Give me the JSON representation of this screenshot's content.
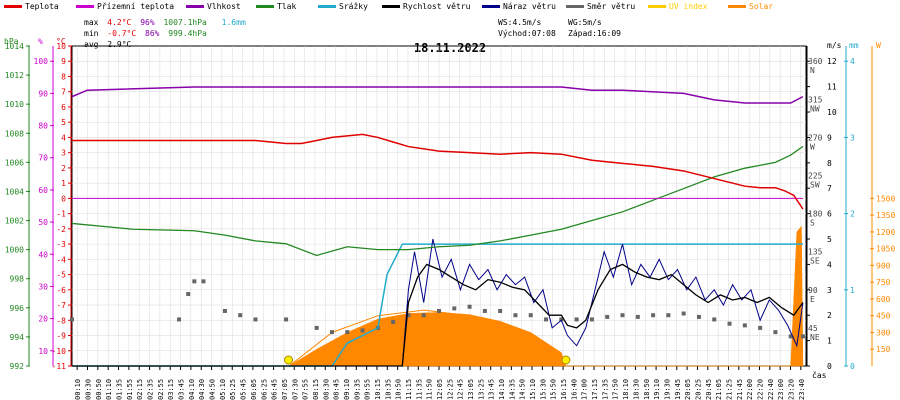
{
  "legend": [
    {
      "label": "Teplota",
      "color": "#e00000"
    },
    {
      "label": "Přízemní teplota",
      "color": "#cc00cc"
    },
    {
      "label": "Vlhkost",
      "color": "#8800aa"
    },
    {
      "label": "Tlak",
      "color": "#228822"
    },
    {
      "label": "Srážky",
      "color": "#22aacc"
    },
    {
      "label": "Rychlost větru",
      "color": "#000000"
    },
    {
      "label": "Náraz větru",
      "color": "#000088"
    },
    {
      "label": "Směr větru",
      "color": "#666666"
    },
    {
      "label": "UV index",
      "color": "#ffcc00"
    },
    {
      "label": "Solar",
      "color": "#ff8800"
    }
  ],
  "stats": {
    "max_label": "max",
    "max_temp": "4.2°C",
    "max_hum": "96%",
    "max_press": "1007.1hPa",
    "max_rain": "1.6mm",
    "min_label": "min",
    "min_temp": "-0.7°C",
    "min_hum": "86%",
    "min_press": "999.4hPa",
    "avg_label": "avg",
    "avg_temp": "2.9°C",
    "ws": "WS:4.5m/s",
    "wg": "WG:5m/s",
    "sunrise": "Východ:07:08",
    "sunset": "Západ:16:09"
  },
  "axes": {
    "hpa": "hPa",
    "pct": "%",
    "degc": "°C",
    "ms": "m/s",
    "mm": "mm",
    "w": "W",
    "cas": "čas"
  },
  "chart_data": {
    "type": "line",
    "title": "18.11.2022",
    "x_ticks": [
      "00:10",
      "00:30",
      "00:50",
      "01:10",
      "01:35",
      "01:55",
      "02:15",
      "02:35",
      "02:55",
      "03:15",
      "03:45",
      "04:10",
      "04:30",
      "04:50",
      "05:10",
      "05:25",
      "05:45",
      "06:05",
      "06:25",
      "06:45",
      "07:05",
      "07:30",
      "07:55",
      "08:15",
      "08:30",
      "08:45",
      "09:10",
      "09:35",
      "09:55",
      "10:15",
      "10:35",
      "10:50",
      "11:15",
      "11:35",
      "11:50",
      "12:05",
      "12:25",
      "12:45",
      "13:05",
      "13:25",
      "13:45",
      "14:10",
      "14:35",
      "14:50",
      "15:10",
      "15:30",
      "15:50",
      "16:15",
      "16:40",
      "17:00",
      "17:15",
      "17:35",
      "17:50",
      "18:10",
      "18:30",
      "18:50",
      "19:10",
      "19:30",
      "19:45",
      "20:05",
      "20:25",
      "20:45",
      "21:05",
      "21:25",
      "21:45",
      "22:00",
      "22:20",
      "22:40",
      "23:00",
      "23:20",
      "23:40"
    ],
    "y_temp_ticks": [
      "10",
      "9",
      "8",
      "7",
      "6",
      "5",
      "4",
      "3",
      "2",
      "1",
      "0",
      "-1",
      "-2",
      "-3",
      "-4",
      "-5",
      "-6",
      "-7",
      "-8",
      "-9",
      "-10",
      "-11"
    ],
    "y_hum_ticks": [
      "100",
      "90",
      "80",
      "70",
      "60",
      "50",
      "40",
      "30",
      "20",
      "10"
    ],
    "y_hpa_ticks": [
      "1014",
      "1012",
      "1010",
      "1008",
      "1006",
      "1004",
      "1002",
      "1000",
      "998",
      "996",
      "994",
      "992"
    ],
    "y_ms_ticks": [
      "12",
      "11",
      "10",
      "9",
      "8",
      "7",
      "6",
      "5",
      "4",
      "3",
      "2",
      "1",
      "0"
    ],
    "y_mm_ticks": [
      "4",
      "3",
      "2",
      "1",
      "0"
    ],
    "y_w_ticks": [
      "1500",
      "1350",
      "1200",
      "1050",
      "900",
      "750",
      "600",
      "450",
      "300",
      "150"
    ],
    "y_dir_ticks": [
      "360",
      "315",
      "270",
      "225",
      "180",
      "135",
      "90",
      "45"
    ],
    "y_dir_letters": [
      "N",
      "NW",
      "W",
      "SW",
      "S",
      "SE",
      "E",
      "NE"
    ],
    "ylim_temp": [
      -11,
      10
    ],
    "series": {
      "temperature": {
        "x": [
          0,
          1,
          2,
          3,
          4,
          5,
          6,
          7,
          7.5,
          8,
          8.5,
          9,
          9.5,
          10,
          10.5,
          11,
          12,
          13,
          14,
          15,
          16,
          17,
          18,
          19,
          20,
          21,
          22,
          22.5,
          23,
          23.3,
          23.6,
          23.9
        ],
        "y": [
          3.8,
          3.8,
          3.8,
          3.8,
          3.8,
          3.8,
          3.8,
          3.6,
          3.6,
          3.8,
          4.0,
          4.1,
          4.2,
          4.0,
          3.7,
          3.4,
          3.1,
          3.0,
          2.9,
          3.0,
          2.9,
          2.5,
          2.3,
          2.1,
          1.8,
          1.3,
          0.8,
          0.7,
          0.7,
          0.5,
          0.2,
          -0.7
        ]
      },
      "ground_temperature": {
        "x": [
          0,
          23.9
        ],
        "y": [
          0,
          0
        ]
      },
      "humidity": {
        "x": [
          0,
          0.5,
          4,
          12,
          16,
          17,
          18,
          20,
          21,
          22,
          22.5,
          23,
          23.5,
          23.9
        ],
        "y": [
          89,
          91,
          92,
          92,
          92,
          91,
          91,
          90,
          88,
          87,
          87,
          87,
          87,
          89
        ]
      },
      "pressure": {
        "x": [
          0,
          2,
          4,
          5,
          6,
          7,
          8,
          9,
          10,
          11,
          12,
          13,
          14,
          15,
          16,
          17,
          18,
          19,
          20,
          21,
          22,
          23,
          23.5,
          23.9
        ],
        "y": [
          1001.8,
          1001.4,
          1001.3,
          1001.0,
          1000.6,
          1000.4,
          999.6,
          1000.2,
          1000.0,
          1000.0,
          1000.2,
          1000.3,
          1000.6,
          1001.0,
          1001.4,
          1002.0,
          1002.6,
          1003.4,
          1004.2,
          1005.0,
          1005.6,
          1006.0,
          1006.5,
          1007.1
        ]
      },
      "rain": {
        "x": [
          0,
          8.5,
          9.0,
          9.5,
          10.0,
          10.3,
          10.8,
          11.0,
          11.5,
          23.9
        ],
        "y": [
          0,
          0,
          0.3,
          0.4,
          0.5,
          1.2,
          1.6,
          1.6,
          1.6,
          1.6
        ]
      },
      "wind_speed": {
        "x": [
          0,
          10.8,
          11.0,
          11.3,
          11.6,
          12.0,
          12.4,
          12.8,
          13.2,
          13.6,
          14.0,
          14.4,
          14.8,
          15.2,
          15.6,
          16.0,
          16.2,
          16.5,
          16.8,
          17.2,
          17.6,
          18.0,
          18.4,
          18.8,
          19.2,
          19.6,
          20.0,
          20.4,
          20.8,
          21.2,
          21.6,
          22.0,
          22.4,
          22.8,
          23.2,
          23.6,
          23.9
        ],
        "y": [
          0,
          0,
          2.5,
          3.5,
          4,
          3.8,
          3.5,
          3.2,
          3,
          3.4,
          3.3,
          3.1,
          3,
          2.5,
          2,
          2,
          1.6,
          1.5,
          1.8,
          3,
          3.8,
          4,
          3.7,
          3.5,
          3.4,
          3.6,
          3.2,
          2.8,
          2.5,
          2.8,
          2.6,
          2.7,
          2.5,
          2.7,
          2.3,
          2.0,
          2.5
        ]
      },
      "wind_gust": {
        "x": [
          0,
          10.8,
          11.0,
          11.2,
          11.5,
          11.8,
          12.1,
          12.4,
          12.7,
          13.0,
          13.3,
          13.6,
          13.9,
          14.2,
          14.5,
          14.8,
          15.1,
          15.4,
          15.7,
          16.0,
          16.2,
          16.5,
          16.8,
          17.1,
          17.4,
          17.7,
          18.0,
          18.3,
          18.6,
          18.9,
          19.2,
          19.5,
          19.8,
          20.1,
          20.4,
          20.7,
          21.0,
          21.3,
          21.6,
          21.9,
          22.2,
          22.5,
          22.8,
          23.1,
          23.4,
          23.7,
          23.9
        ],
        "y": [
          0,
          0,
          3,
          4.5,
          2.5,
          5,
          3.5,
          4.2,
          3,
          4,
          3.4,
          3.8,
          3,
          3.6,
          3.2,
          3.5,
          2.5,
          3,
          1.5,
          1.8,
          1.2,
          0.8,
          1.5,
          3,
          4.5,
          3.5,
          4.8,
          3.2,
          4,
          3.5,
          4.2,
          3.4,
          3.8,
          3,
          3.5,
          2.6,
          3,
          2.4,
          3.2,
          2.6,
          3,
          1.8,
          2.6,
          2.2,
          1.6,
          0.8,
          2.5
        ]
      },
      "wind_direction": {
        "x": [
          0,
          3.5,
          3.8,
          4.0,
          4.3,
          5.0,
          5.5,
          6.0,
          7.0,
          8.0,
          8.5,
          9.0,
          9.5,
          10.0,
          10.5,
          11.0,
          11.5,
          12.0,
          12.5,
          13.0,
          13.5,
          14.0,
          14.5,
          15.0,
          15.5,
          16.0,
          16.5,
          17.0,
          17.5,
          18.0,
          18.5,
          19.0,
          19.5,
          20.0,
          20.5,
          21.0,
          21.5,
          22.0,
          22.5,
          23.0,
          23.5,
          23.9
        ],
        "y": [
          55,
          55,
          85,
          100,
          100,
          65,
          60,
          55,
          55,
          45,
          40,
          40,
          42,
          45,
          52,
          60,
          60,
          65,
          68,
          70,
          65,
          65,
          60,
          60,
          55,
          55,
          55,
          55,
          58,
          60,
          58,
          60,
          60,
          62,
          58,
          55,
          50,
          48,
          45,
          40,
          35,
          35
        ]
      },
      "uv_index": {
        "x": [
          7.08,
          16.15
        ],
        "y": [
          0,
          0
        ]
      },
      "solar": {
        "x": [
          0,
          7.1,
          8.0,
          9.0,
          10.0,
          11.0,
          12.0,
          13.0,
          14.0,
          15.0,
          16.0,
          16.15,
          23.5,
          23.7,
          23.85,
          23.9
        ],
        "y": [
          0,
          0,
          150,
          300,
          420,
          470,
          480,
          460,
          400,
          300,
          120,
          0,
          0,
          1200,
          1250,
          0
        ]
      },
      "solar_max": {
        "x": [
          7.1,
          8.5,
          10,
          11.5,
          13,
          14.5,
          16.15
        ],
        "y": [
          0,
          300,
          450,
          500,
          450,
          300,
          0
        ]
      }
    }
  }
}
